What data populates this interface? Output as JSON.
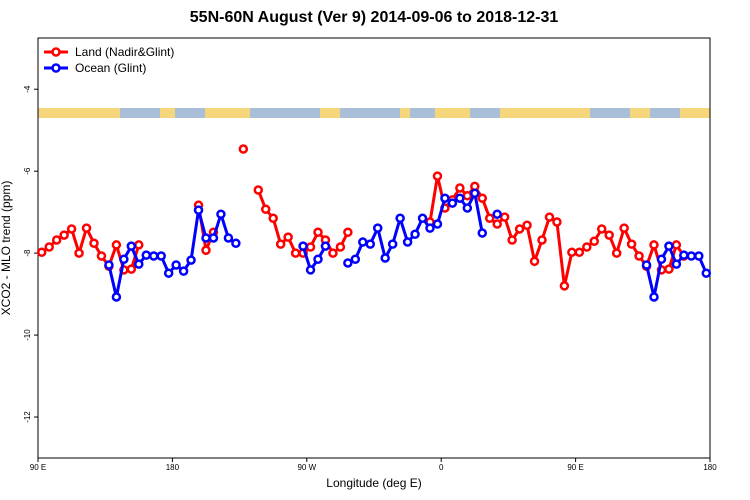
{
  "chart_data": {
    "type": "line",
    "title": "55N-60N August (Ver 9)   2014-09-06 to 2018-12-31",
    "x_label": "Longitude (deg E)",
    "y_label": "XCO2 - MLO trend (ppm)",
    "xlim": [
      90,
      540
    ],
    "ylim": [
      -13,
      -2.75
    ],
    "xticks": [
      {
        "value": 90,
        "label": "90 E"
      },
      180,
      {
        "value": 270,
        "label": "90 W"
      },
      {
        "value": 360,
        "label": "0"
      },
      {
        "value": 450,
        "label": "90 E"
      },
      {
        "value": 540,
        "label": "180"
      }
    ],
    "yticks": [
      -4,
      -6,
      -8,
      -10,
      -12
    ],
    "legend": "upper left",
    "x": [
      92.5,
      97.5,
      102.5,
      107.5,
      112.5,
      117.5,
      122.5,
      127.5,
      132.5,
      137.5,
      142.5,
      147.5,
      152.5,
      157.5,
      162.5,
      167.5,
      172.5,
      177.5,
      182.5,
      187.5,
      192.5,
      197.5,
      202.5,
      207.5,
      212.5,
      217.5,
      222.5,
      227.5,
      232.5,
      237.5,
      242.5,
      247.5,
      252.5,
      257.5,
      262.5,
      267.5,
      272.5,
      277.5,
      282.5,
      287.5,
      292.5,
      297.5,
      302.5,
      307.5,
      312.5,
      317.5,
      322.5,
      327.5,
      332.5,
      337.5,
      342.5,
      347.5,
      352.5,
      357.5,
      362.5,
      367.5,
      372.5,
      377.5,
      382.5,
      387.5,
      392.5,
      397.5,
      402.5,
      407.5,
      412.5,
      417.5,
      422.5,
      427.5,
      432.5,
      437.5,
      442.5,
      447.5,
      452.5,
      457.5,
      462.5,
      467.5,
      472.5,
      477.5,
      482.5,
      487.5,
      492.5,
      497.5,
      502.5,
      507.5,
      512.5,
      517.5,
      522.5,
      527.5,
      532.5,
      537.5
    ],
    "series": [
      {
        "name": "Land (Nadir&Glint)",
        "color": "#ff0000",
        "values": [
          -7.98,
          -7.85,
          -7.68,
          -7.56,
          -7.41,
          -8.0,
          -7.39,
          -7.76,
          -8.07,
          -8.32,
          -7.8,
          -8.41,
          -8.39,
          -7.8,
          null,
          null,
          null,
          null,
          null,
          null,
          null,
          -6.83,
          -7.93,
          -7.49,
          null,
          null,
          null,
          -5.46,
          null,
          -6.46,
          -6.93,
          -7.15,
          -7.78,
          -7.61,
          -8.0,
          -8.0,
          -7.85,
          -7.49,
          -7.68,
          -8.0,
          -7.85,
          -7.49,
          null,
          null,
          null,
          null,
          null,
          null,
          null,
          null,
          null,
          null,
          -7.24,
          -6.12,
          -6.9,
          -6.7,
          -6.41,
          -6.6,
          -6.37,
          -6.66,
          -7.15,
          -7.29,
          -7.12,
          -7.68,
          -7.41,
          -7.32,
          -8.2,
          -7.68,
          -7.12,
          -7.24,
          -8.8,
          -7.98,
          -7.98,
          -7.85,
          -7.71,
          -7.41,
          -7.56,
          -8.0,
          -7.39,
          -7.78,
          -8.07,
          -8.32,
          -7.8,
          -8.41,
          -8.39,
          -7.8,
          -8.07,
          null,
          null,
          null
        ]
      },
      {
        "name": "Ocean (Glint)",
        "color": "#0000ff",
        "values": [
          null,
          null,
          null,
          null,
          null,
          null,
          null,
          null,
          null,
          -8.29,
          -9.07,
          -8.15,
          -7.83,
          -8.27,
          -8.05,
          -8.07,
          -8.07,
          -8.49,
          -8.29,
          -8.44,
          -8.17,
          -6.95,
          -7.63,
          -7.63,
          -7.05,
          -7.63,
          -7.76,
          null,
          null,
          null,
          null,
          null,
          null,
          null,
          null,
          -7.83,
          -8.41,
          -8.15,
          -7.83,
          null,
          null,
          -8.24,
          -8.15,
          -7.73,
          -7.78,
          -7.39,
          -8.12,
          -7.78,
          -7.15,
          -7.73,
          -7.54,
          -7.15,
          -7.39,
          -7.29,
          -6.66,
          -6.78,
          -6.66,
          -6.9,
          -6.54,
          -7.51,
          null,
          -7.05,
          null,
          null,
          null,
          null,
          null,
          null,
          null,
          null,
          null,
          null,
          null,
          null,
          null,
          null,
          null,
          null,
          null,
          null,
          null,
          -8.29,
          -9.07,
          -8.15,
          -7.83,
          -8.27,
          -8.05,
          -8.07,
          -8.07,
          -8.49
        ]
      }
    ]
  }
}
